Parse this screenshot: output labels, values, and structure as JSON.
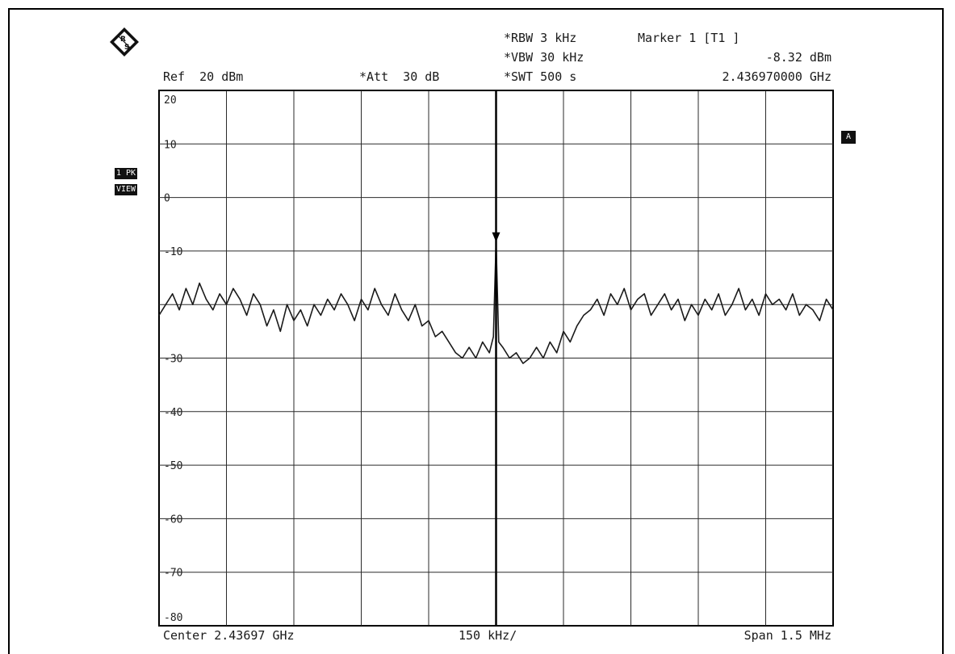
{
  "header": {
    "ref": "Ref  20 dBm",
    "att": "*Att  30 dB",
    "rbw": "*RBW 3 kHz",
    "vbw": "*VBW 30 kHz",
    "swt": "*SWT 500 s",
    "marker_title": "Marker 1 [T1 ]",
    "marker_level": "-8.32 dBm",
    "marker_freq": "2.436970000 GHz"
  },
  "side_tags": {
    "trace_mode": "1 PK",
    "view_mode": "VIEW",
    "trace_label": "A"
  },
  "footer": {
    "center": "Center 2.43697 GHz",
    "div": "150 kHz/",
    "span": "Span 1.5 MHz"
  },
  "colors": {
    "trace": "#1a1a1a",
    "grid": "#2a2a2a",
    "background": "#ffffff"
  },
  "chart_data": {
    "type": "line",
    "title": "",
    "xlabel": "",
    "ylabel": "",
    "y_unit": "dBm",
    "ylim": [
      -80,
      20
    ],
    "y_ticks": [
      "20",
      "10",
      "0",
      "-10",
      "-30",
      "-40",
      "-50",
      "-60",
      "-70",
      "-80"
    ],
    "y_tick_values": [
      20,
      10,
      0,
      -10,
      -30,
      -40,
      -50,
      -60,
      -70,
      -80
    ],
    "x_divisions": 10,
    "y_divisions": 10,
    "grid": true,
    "marker": {
      "x_div": 5.0,
      "y": -8.32
    },
    "series": [
      {
        "x_div": [
          0,
          0.1,
          0.2,
          0.3,
          0.4,
          0.5,
          0.6,
          0.7,
          0.8,
          0.9,
          1.0,
          1.1,
          1.2,
          1.3,
          1.4,
          1.5,
          1.6,
          1.7,
          1.8,
          1.9,
          2.0,
          2.1,
          2.2,
          2.3,
          2.4,
          2.5,
          2.6,
          2.7,
          2.8,
          2.9,
          3.0,
          3.1,
          3.2,
          3.3,
          3.4,
          3.5,
          3.6,
          3.7,
          3.8,
          3.9,
          4.0,
          4.1,
          4.2,
          4.3,
          4.4,
          4.5,
          4.6,
          4.7,
          4.8,
          4.9,
          4.96,
          5.0,
          5.04,
          5.1,
          5.2,
          5.3,
          5.4,
          5.5,
          5.6,
          5.7,
          5.8,
          5.9,
          6.0,
          6.1,
          6.2,
          6.3,
          6.4,
          6.5,
          6.6,
          6.7,
          6.8,
          6.9,
          7.0,
          7.1,
          7.2,
          7.3,
          7.4,
          7.5,
          7.6,
          7.7,
          7.8,
          7.9,
          8.0,
          8.1,
          8.2,
          8.3,
          8.4,
          8.5,
          8.6,
          8.7,
          8.8,
          8.9,
          9.0,
          9.1,
          9.2,
          9.3,
          9.4,
          9.5,
          9.6,
          9.7,
          9.8,
          9.9,
          10.0
        ],
        "y": [
          -22,
          -20,
          -18,
          -21,
          -17,
          -20,
          -16,
          -19,
          -21,
          -18,
          -20,
          -17,
          -19,
          -22,
          -18,
          -20,
          -24,
          -21,
          -25,
          -20,
          -23,
          -21,
          -24,
          -20,
          -22,
          -19,
          -21,
          -18,
          -20,
          -23,
          -19,
          -21,
          -17,
          -20,
          -22,
          -18,
          -21,
          -23,
          -20,
          -24,
          -23,
          -26,
          -25,
          -27,
          -29,
          -30,
          -28,
          -30,
          -27,
          -29,
          -26,
          -8.32,
          -27,
          -28,
          -30,
          -29,
          -31,
          -30,
          -28,
          -30,
          -27,
          -29,
          -25,
          -27,
          -24,
          -22,
          -21,
          -19,
          -22,
          -18,
          -20,
          -17,
          -21,
          -19,
          -18,
          -22,
          -20,
          -18,
          -21,
          -19,
          -23,
          -20,
          -22,
          -19,
          -21,
          -18,
          -22,
          -20,
          -17,
          -21,
          -19,
          -22,
          -18,
          -20,
          -19,
          -21,
          -18,
          -22,
          -20,
          -21,
          -23,
          -19,
          -21
        ]
      }
    ]
  }
}
